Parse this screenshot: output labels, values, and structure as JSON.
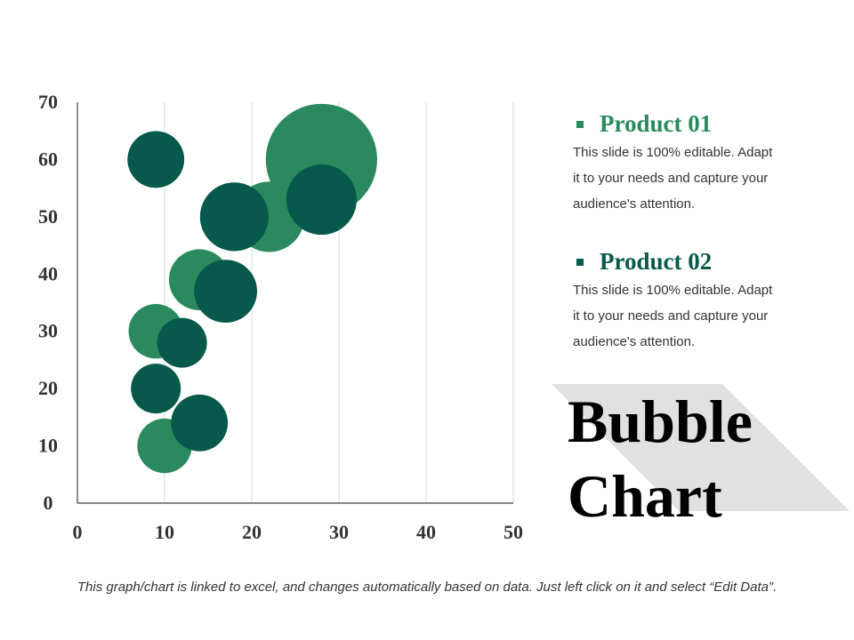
{
  "chart_data": {
    "type": "scatter",
    "subtype": "bubble",
    "xlim": [
      0,
      50
    ],
    "ylim": [
      0,
      70
    ],
    "xticks": [
      0,
      10,
      20,
      30,
      40,
      50
    ],
    "yticks": [
      0,
      10,
      20,
      30,
      40,
      50,
      60,
      70
    ],
    "grid": "vertical",
    "series": [
      {
        "name": "Product 01",
        "color": "#2a8a5e",
        "points": [
          {
            "x": 10,
            "y": 10,
            "size": 1.2
          },
          {
            "x": 9,
            "y": 30,
            "size": 1.2
          },
          {
            "x": 14,
            "y": 39,
            "size": 1.5
          },
          {
            "x": 22,
            "y": 50,
            "size": 2.0
          },
          {
            "x": 28,
            "y": 60,
            "size": 5.0
          }
        ]
      },
      {
        "name": "Product 02",
        "color": "#06594b",
        "points": [
          {
            "x": 9,
            "y": 60,
            "size": 1.3
          },
          {
            "x": 18,
            "y": 50,
            "size": 1.9
          },
          {
            "x": 28,
            "y": 53,
            "size": 2.0
          },
          {
            "x": 17,
            "y": 37,
            "size": 1.6
          },
          {
            "x": 12,
            "y": 28,
            "size": 1.0
          },
          {
            "x": 9,
            "y": 20,
            "size": 1.0
          },
          {
            "x": 14,
            "y": 14,
            "size": 1.3
          }
        ]
      }
    ]
  },
  "legend": {
    "product1": {
      "title": "Product 01",
      "color": "#2a8a5e",
      "lines": [
        "This slide is 100% editable. Adapt",
        "it to your needs and capture your",
        "audience's attention."
      ]
    },
    "product2": {
      "title": "Product 02",
      "color": "#06594b",
      "lines": [
        "This slide is 100% editable. Adapt",
        "it to your needs and capture your",
        "audience's attention."
      ]
    }
  },
  "title": {
    "line1": "Bubble",
    "line2": "Chart"
  },
  "footer": "This graph/chart is linked to excel, and changes automatically based on data. Just left click on it and select “Edit Data”."
}
